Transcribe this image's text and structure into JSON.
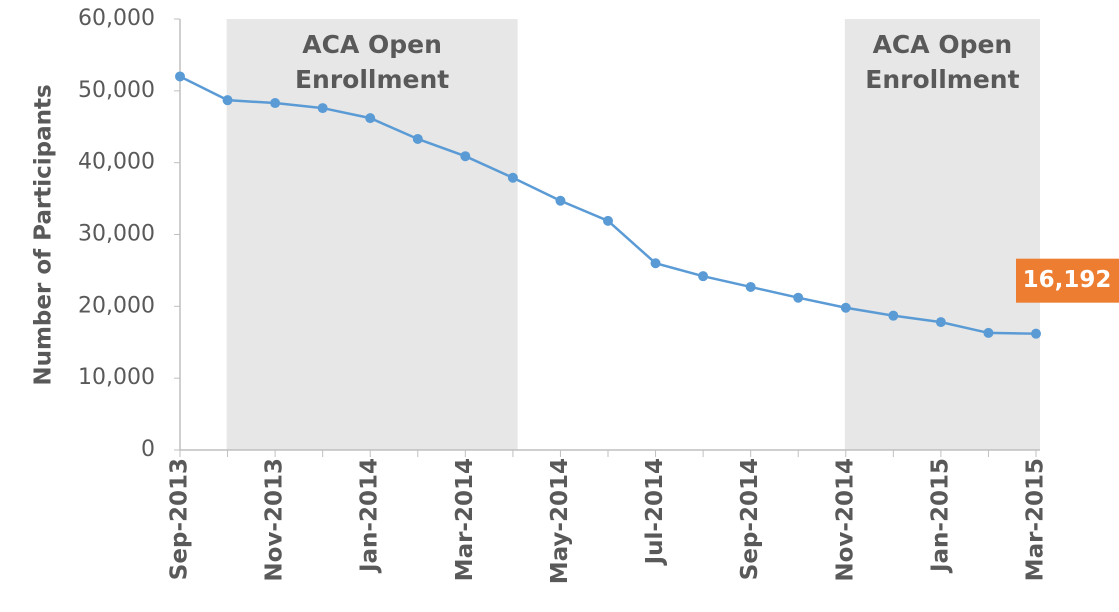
{
  "chart_data": {
    "type": "line",
    "y_label": "Number of Participants",
    "categories": [
      "Sep-2013",
      null,
      "Nov-2013",
      null,
      "Jan-2014",
      null,
      "Mar-2014",
      null,
      "May-2014",
      null,
      "Jul-2014",
      null,
      "Sep-2014",
      null,
      "Nov-2014",
      null,
      "Jan-2015",
      null,
      "Mar-2015"
    ],
    "series": [
      {
        "name": "Participants",
        "color": "#5b9bd5",
        "values": [
          52000,
          48700,
          48300,
          47600,
          46200,
          43300,
          40900,
          37900,
          34700,
          31900,
          26000,
          24200,
          22700,
          21200,
          19800,
          18700,
          17800,
          16300,
          16192
        ],
        "value_labels": [
          null,
          null,
          null,
          null,
          null,
          null,
          null,
          null,
          null,
          null,
          null,
          null,
          null,
          null,
          null,
          null,
          null,
          null,
          "16,192"
        ]
      }
    ],
    "ylim": [
      0,
      60000
    ],
    "yticks": [
      0,
      {
        "value": 10000,
        "label": "10,000"
      },
      {
        "value": 20000,
        "label": "20,000"
      },
      {
        "value": 30000,
        "label": "30,000"
      },
      {
        "value": 40000,
        "label": "40,000"
      },
      {
        "value": 50000,
        "label": "50,000"
      },
      {
        "value": 60000,
        "label": "60,000"
      }
    ],
    "label_color": "#ed7d31",
    "shaded_regions": [
      {
        "lines": [
          "ACA Open",
          "Enrollment"
        ],
        "from": 1,
        "to": 7,
        "color": "#e7e7e7"
      },
      {
        "lines": [
          "ACA Open",
          "Enrollment"
        ],
        "from": 14,
        "to": 18,
        "color": "#e7e7e7"
      }
    ]
  }
}
